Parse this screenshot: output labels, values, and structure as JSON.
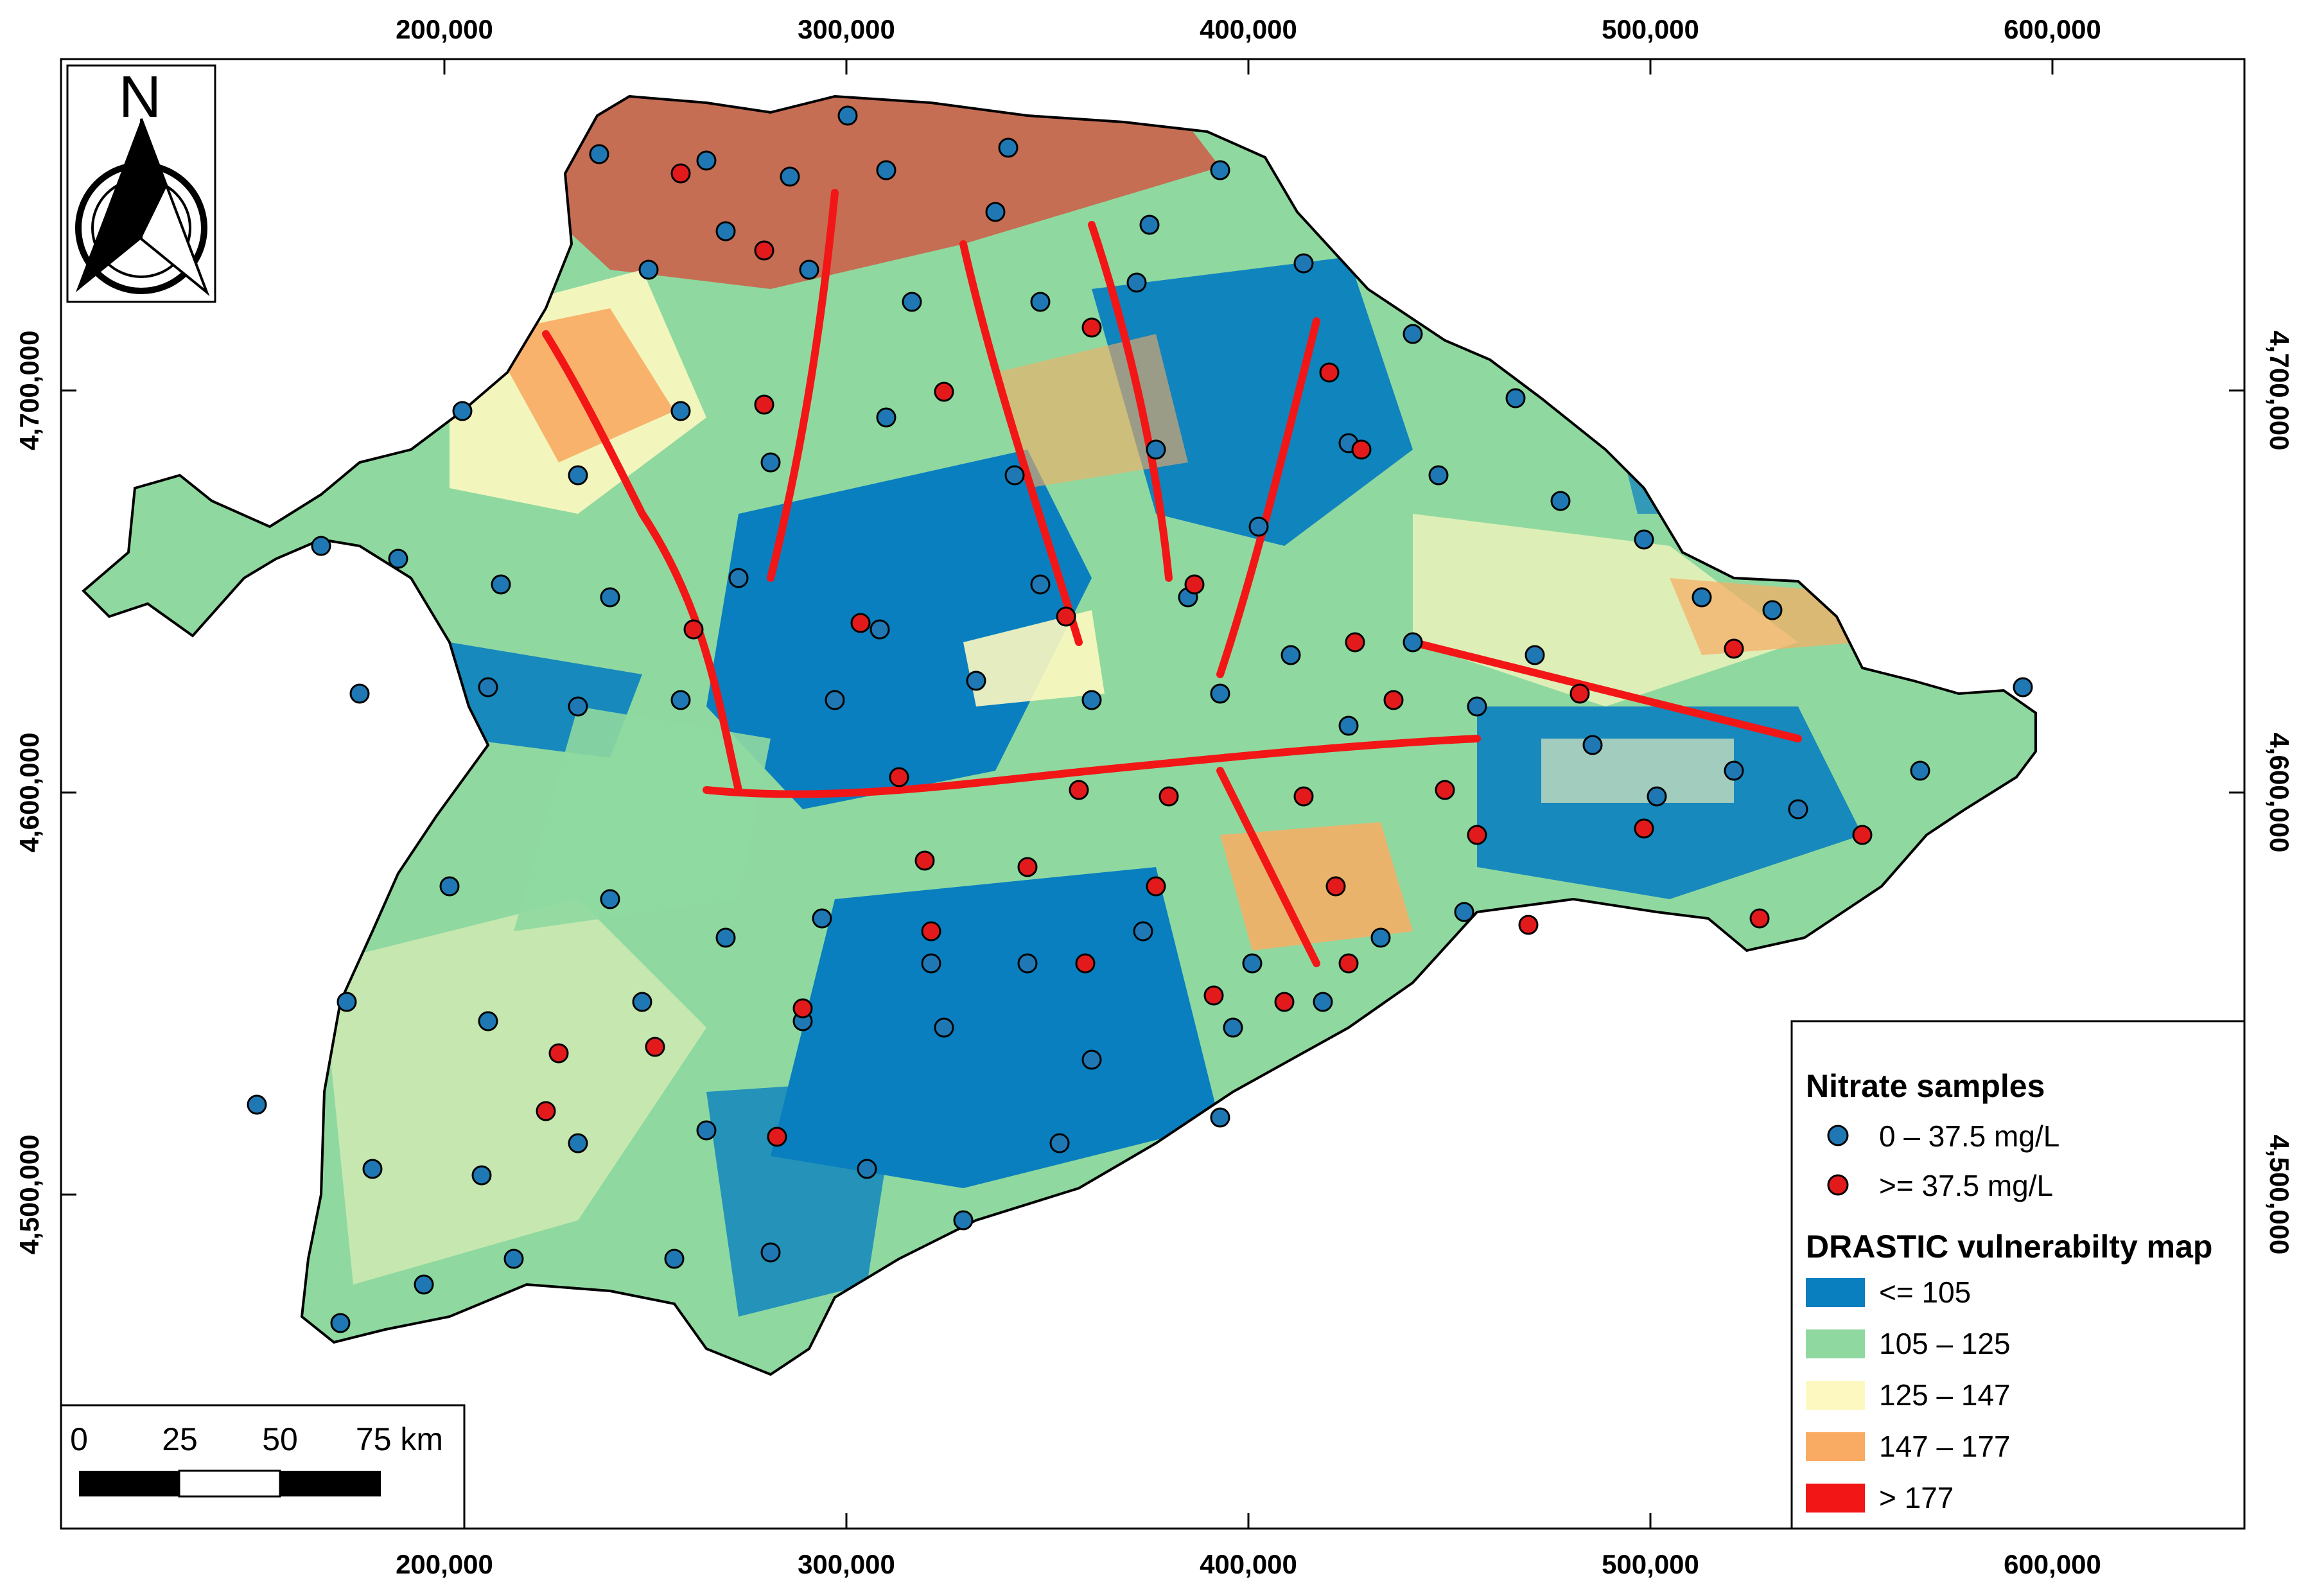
{
  "map": {
    "x_ticks": [
      "200,000",
      "300,000",
      "400,000",
      "500,000",
      "600,000"
    ],
    "y_ticks": [
      "4,700,000",
      "4,600,000",
      "4,500,000"
    ],
    "north_arrow": {
      "label": "N",
      "icon": "north-arrow-icon"
    }
  },
  "legend": {
    "samples_title": "Nitrate samples",
    "samples": [
      {
        "label": "0 – 37.5 mg/L",
        "color": "#1f78b4"
      },
      {
        "label": ">= 37.5 mg/L",
        "color": "#e31a1c"
      }
    ],
    "classes_title": "DRASTIC vulnerabilty map",
    "classes": [
      {
        "label": "<= 105",
        "color": "#0a7fbf"
      },
      {
        "label": "105 – 125",
        "color": "#8fd9a0"
      },
      {
        "label": "125 – 147",
        "color": "#fdf8c0"
      },
      {
        "label": "147 – 177",
        "color": "#f9ab63"
      },
      {
        "label": "> 177",
        "color": "#f21616"
      }
    ]
  },
  "scale_bar": {
    "labels": [
      "0",
      "25",
      "50",
      "75 km"
    ]
  }
}
